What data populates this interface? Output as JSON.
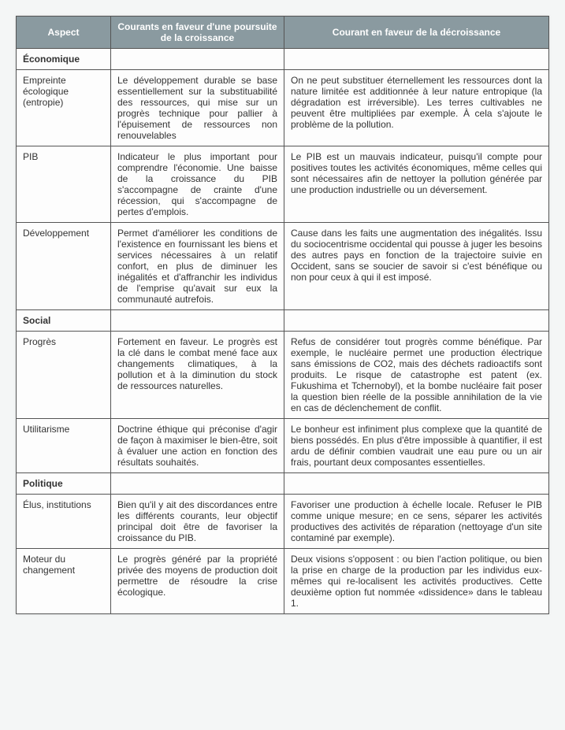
{
  "headers": {
    "aspect": "Aspect",
    "growth": "Courants en faveur d'une poursuite de la croissance",
    "degrowth": "Courant en faveur de la décroissance"
  },
  "sections": {
    "economique": "Économique",
    "social": "Social",
    "politique": "Politique"
  },
  "rows": {
    "empreinte": {
      "aspect": "Empreinte écologique (entropie)",
      "growth": "Le développement durable se base essentiellement sur la substituabilité des ressources, qui mise sur un progrès technique pour pallier à l'épuisement de ressources non renouvelables",
      "degrowth": "On ne peut substituer éternellement les ressources dont la nature limitée est additionnée à leur nature entropique (la dégradation est irréversible). Les terres cultivables ne peuvent être multipliées par exemple. À cela s'ajoute le problème de la pollution."
    },
    "pib": {
      "aspect": "PIB",
      "growth": "Indicateur le plus important pour comprendre l'économie. Une baisse de la croissance du PIB s'accompagne de crainte d'une récession, qui s'accompagne de pertes d'emplois.",
      "degrowth": "Le PIB est un mauvais indicateur, puisqu'il compte pour positives toutes les activités économiques, même celles qui sont nécessaires afin de nettoyer la pollution générée par une production industrielle ou un déversement."
    },
    "developpement": {
      "aspect": "Développement",
      "growth": "Permet d'améliorer les conditions de l'existence en fournissant les biens et services nécessaires à un relatif confort, en plus de diminuer les inégalités et d'affranchir les individus de l'emprise qu'avait sur eux la communauté autrefois.",
      "degrowth": "Cause dans les faits une augmentation des inégalités. Issu du sociocentrisme occidental qui pousse à juger les besoins des autres pays en fonction de la trajectoire suivie en Occident, sans se soucier de savoir si c'est bénéfique ou non pour ceux à qui il est imposé."
    },
    "progres": {
      "aspect": "Progrès",
      "growth": "Fortement en faveur. Le progrès est la clé dans le combat mené face aux changements climatiques, à la pollution et à la diminution du stock de ressources naturelles.",
      "degrowth": "Refus de considérer tout progrès comme bénéfique. Par exemple, le nucléaire permet une production électrique sans émissions de CO2, mais des déchets radioactifs sont produits. Le risque de catastrophe est patent (ex. Fukushima et Tchernobyl), et la bombe nucléaire fait poser la question bien réelle de la possible annihilation de la vie en cas de déclenchement de conflit."
    },
    "utilitarisme": {
      "aspect": "Utilitarisme",
      "growth": "Doctrine éthique qui préconise d'agir de façon à maximiser le bien-être, soit à évaluer une action en fonction des résultats souhaités.",
      "degrowth": "Le bonheur est infiniment plus complexe que la quantité de biens possédés. En plus d'être impossible à quantifier, il est ardu de définir combien vaudrait une eau pure ou un air frais, pourtant deux composantes essentielles."
    },
    "elus": {
      "aspect": "Élus, institutions",
      "growth": "Bien qu'il y ait des discordances entre les différents courants, leur objectif principal doit être de favoriser la croissance du PIB.",
      "degrowth": "Favoriser une production à échelle locale. Refuser le PIB comme unique mesure; en ce sens, séparer les activités productives des activités de réparation (nettoyage d'un site contaminé par exemple)."
    },
    "moteur": {
      "aspect": "Moteur du changement",
      "growth": "Le progrès généré par la propriété privée des moyens de production doit permettre de résoudre la crise écologique.",
      "degrowth": "Deux visions s'opposent : ou bien l'action politique, ou bien la prise en charge de la production par les individus eux-mêmes qui re-localisent les activités productives. Cette deuxième option fut nommée «dissidence» dans le tableau 1."
    }
  }
}
